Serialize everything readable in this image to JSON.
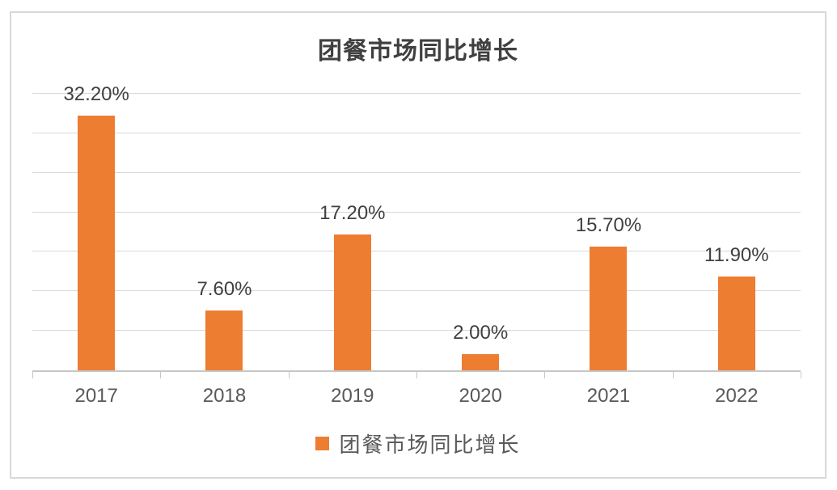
{
  "chart": {
    "title": "团餐市场同比增长",
    "legend": {
      "label": "团餐市场同比增长",
      "marker_color": "#ED7D31"
    },
    "colors": {
      "bar": "#ED7D31",
      "title_text": "#404040",
      "label_text": "#404040",
      "axis_text": "#595959",
      "gridline": "#D9D9D9",
      "axis_line": "#C6C6C6",
      "frame_border": "#D9D9D9",
      "background": "#FFFFFF"
    }
  },
  "chart_data": {
    "type": "bar",
    "title": "团餐市场同比增长",
    "categories": [
      "2017",
      "2018",
      "2019",
      "2020",
      "2021",
      "2022"
    ],
    "values": [
      32.2,
      7.6,
      17.2,
      2.0,
      15.7,
      11.9
    ],
    "value_labels": [
      "32.20%",
      "7.60%",
      "17.20%",
      "2.00%",
      "15.70%",
      "11.90%"
    ],
    "xlabel": "",
    "ylabel": "",
    "ylim": [
      0,
      35
    ],
    "gridline_step": 5,
    "grid": true,
    "y_axis_labels_visible": false,
    "legend_position": "bottom",
    "legend_entries": [
      "团餐市场同比增长"
    ]
  }
}
